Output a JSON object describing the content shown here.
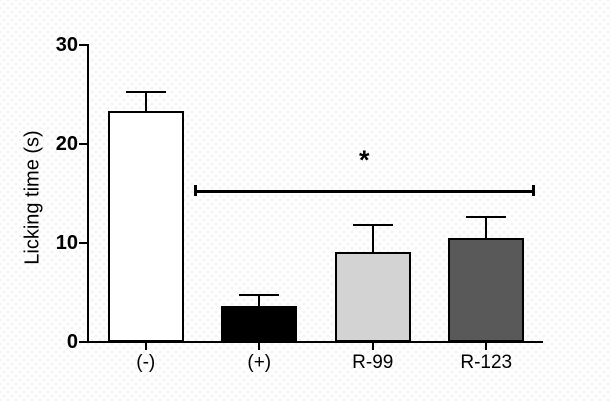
{
  "chart_data": {
    "type": "bar",
    "title": "",
    "xlabel": "",
    "ylabel": "Licking time (s)",
    "categories": [
      "(-)",
      "(+)",
      "R-99",
      "R-123"
    ],
    "values": [
      23.2,
      3.5,
      9.0,
      10.4
    ],
    "errors_upper": [
      2.1,
      1.2,
      2.8,
      2.2
    ],
    "bar_fill_colors": [
      "#ffffff",
      "#000000",
      "#d3d3d3",
      "#595959"
    ],
    "bar_border_color": "#000000",
    "ylim": [
      0,
      30
    ],
    "yticks": [
      "0",
      "10",
      "20",
      "30"
    ],
    "grid": false,
    "legend": false,
    "error_bar_style": "upper-cap-only",
    "significance": {
      "label": "*",
      "spans_categories": [
        "(+)",
        "R-123"
      ],
      "y_value": 15.2
    }
  },
  "colors": {
    "axis": "#000000",
    "text": "#000000",
    "background": "#fdfdfd"
  }
}
